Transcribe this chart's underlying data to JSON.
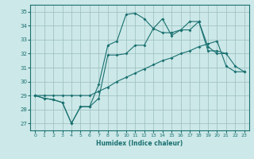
{
  "xlabel": "Humidex (Indice chaleur)",
  "xlim": [
    -0.5,
    23.5
  ],
  "ylim": [
    26.5,
    35.5
  ],
  "xticks": [
    0,
    1,
    2,
    3,
    4,
    5,
    6,
    7,
    8,
    9,
    10,
    11,
    12,
    13,
    14,
    15,
    16,
    17,
    18,
    19,
    20,
    21,
    22,
    23
  ],
  "yticks": [
    27,
    28,
    29,
    30,
    31,
    32,
    33,
    34,
    35
  ],
  "bg_color": "#cce8e8",
  "line_color": "#1a7070",
  "grid_color": "#9bbcbc",
  "line1": [
    29.0,
    28.8,
    28.7,
    28.5,
    27.0,
    28.2,
    28.2,
    28.8,
    31.9,
    31.9,
    32.0,
    32.6,
    32.6,
    33.8,
    33.5,
    33.5,
    33.7,
    33.7,
    34.3,
    32.2,
    32.2,
    32.0,
    31.1,
    30.7
  ],
  "line2": [
    29.0,
    28.8,
    28.7,
    28.5,
    27.0,
    28.2,
    28.2,
    29.8,
    32.6,
    32.9,
    34.8,
    34.9,
    34.5,
    33.8,
    34.5,
    33.3,
    33.7,
    34.3,
    34.3,
    32.5,
    32.0,
    32.0,
    null,
    null
  ],
  "line3": [
    29.0,
    29.0,
    29.0,
    29.0,
    29.0,
    29.0,
    29.0,
    29.3,
    29.6,
    30.0,
    30.3,
    30.6,
    30.9,
    31.2,
    31.5,
    31.7,
    32.0,
    32.2,
    32.5,
    32.7,
    32.9,
    31.1,
    30.7,
    30.7
  ],
  "marker": "D",
  "markersize": 2.0,
  "linewidth": 0.8
}
